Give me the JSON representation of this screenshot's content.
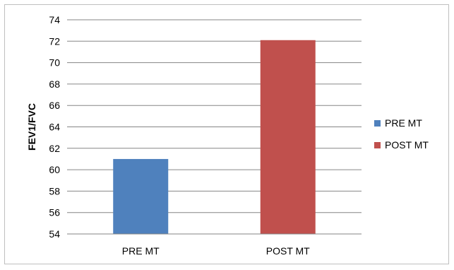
{
  "chart_data": {
    "type": "bar",
    "categories": [
      "PRE MT",
      "POST MT"
    ],
    "series": [
      {
        "name": "PRE MT",
        "values": [
          61,
          null
        ],
        "color": "#4f81bd"
      },
      {
        "name": "POST MT",
        "values": [
          null,
          72.1
        ],
        "color": "#c0504d"
      }
    ],
    "xlabel": "",
    "ylabel": "FEV1/FVC",
    "ylim": [
      54,
      74
    ],
    "yticks": [
      54,
      56,
      58,
      60,
      62,
      64,
      66,
      68,
      70,
      72,
      74
    ],
    "grid": true,
    "legend": "right"
  }
}
